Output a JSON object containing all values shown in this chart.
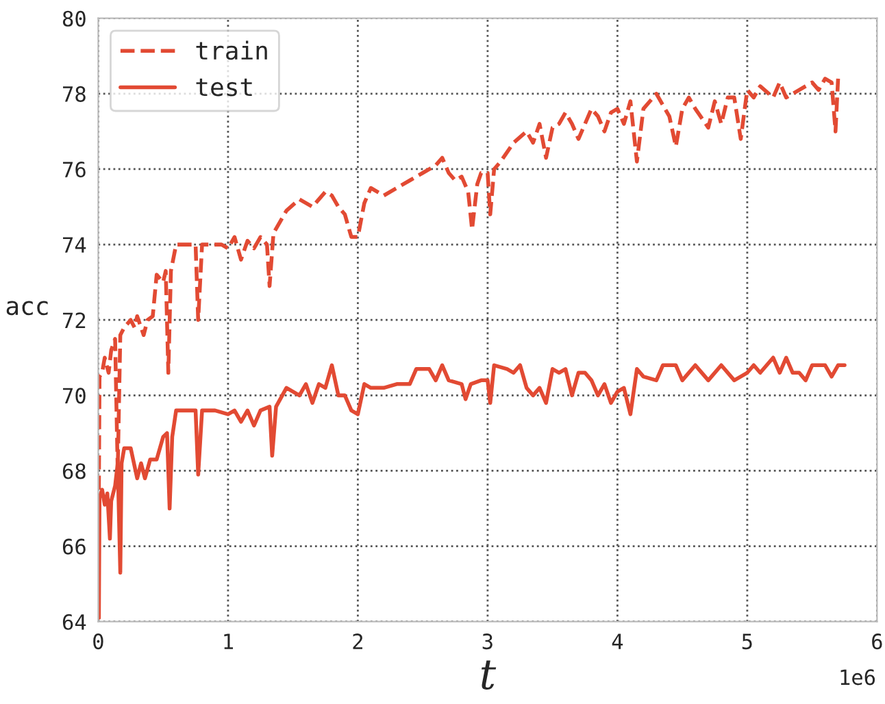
{
  "chart_data": {
    "type": "line",
    "xlabel": "t",
    "ylabel": "acc",
    "annotations": [
      "1e6"
    ],
    "xlim": [
      0,
      6
    ],
    "ylim": [
      64,
      80
    ],
    "xticks": [
      0,
      1,
      2,
      3,
      4,
      5,
      6
    ],
    "yticks": [
      64,
      66,
      68,
      70,
      72,
      74,
      76,
      78,
      80
    ],
    "grid": true,
    "legend": "top left",
    "series": [
      {
        "name": "train",
        "color": "#e24a33",
        "line_style": "dashed",
        "x": [
          0.005,
          0.01,
          0.03,
          0.05,
          0.08,
          0.1,
          0.13,
          0.15,
          0.17,
          0.2,
          0.25,
          0.28,
          0.3,
          0.35,
          0.38,
          0.42,
          0.45,
          0.5,
          0.52,
          0.54,
          0.56,
          0.6,
          0.7,
          0.75,
          0.77,
          0.8,
          0.9,
          0.95,
          1.0,
          1.05,
          1.1,
          1.15,
          1.2,
          1.25,
          1.3,
          1.32,
          1.35,
          1.45,
          1.55,
          1.65,
          1.75,
          1.8,
          1.85,
          1.9,
          1.95,
          2.0,
          2.05,
          2.1,
          2.2,
          2.3,
          2.4,
          2.5,
          2.6,
          2.65,
          2.7,
          2.75,
          2.8,
          2.85,
          2.88,
          2.92,
          2.95,
          3.0,
          3.02,
          3.05,
          3.1,
          3.2,
          3.3,
          3.35,
          3.4,
          3.45,
          3.5,
          3.55,
          3.6,
          3.65,
          3.7,
          3.8,
          3.85,
          3.9,
          3.95,
          4.0,
          4.05,
          4.1,
          4.15,
          4.2,
          4.3,
          4.35,
          4.4,
          4.45,
          4.5,
          4.55,
          4.6,
          4.7,
          4.75,
          4.8,
          4.85,
          4.9,
          4.95,
          5.0,
          5.05,
          5.1,
          5.2,
          5.25,
          5.3,
          5.4,
          5.5,
          5.55,
          5.6,
          5.65,
          5.68,
          5.7
        ],
        "values": [
          67.5,
          70.5,
          70.6,
          71.0,
          70.6,
          71.2,
          71.5,
          68.0,
          71.6,
          71.8,
          72.0,
          71.8,
          72.1,
          71.6,
          72.0,
          72.1,
          73.2,
          73.0,
          73.3,
          70.6,
          73.3,
          74.0,
          74.0,
          74.0,
          72.0,
          74.0,
          74.0,
          74.0,
          73.9,
          74.2,
          73.6,
          74.1,
          73.9,
          74.2,
          74.0,
          72.9,
          74.3,
          74.9,
          75.2,
          75.0,
          75.4,
          75.3,
          75.0,
          74.8,
          74.2,
          74.2,
          75.1,
          75.5,
          75.3,
          75.5,
          75.7,
          75.9,
          76.1,
          76.3,
          75.9,
          75.7,
          75.8,
          75.4,
          74.4,
          75.6,
          75.9,
          75.9,
          74.8,
          76.0,
          76.2,
          76.7,
          77.0,
          76.7,
          77.2,
          76.3,
          77.1,
          77.2,
          77.5,
          77.2,
          76.8,
          77.6,
          77.4,
          77.0,
          77.5,
          77.6,
          77.2,
          77.8,
          76.2,
          77.6,
          78.0,
          77.7,
          77.4,
          76.6,
          77.6,
          77.9,
          77.6,
          77.1,
          77.8,
          77.2,
          77.9,
          77.9,
          76.8,
          78.1,
          77.9,
          78.2,
          77.9,
          78.3,
          77.9,
          78.1,
          78.3,
          78.1,
          78.4,
          78.3,
          77.0,
          78.4
        ]
      },
      {
        "name": "test",
        "color": "#e24a33",
        "line_style": "solid",
        "x": [
          0.005,
          0.01,
          0.03,
          0.05,
          0.07,
          0.09,
          0.1,
          0.13,
          0.15,
          0.17,
          0.18,
          0.2,
          0.25,
          0.3,
          0.33,
          0.36,
          0.4,
          0.45,
          0.5,
          0.53,
          0.55,
          0.57,
          0.6,
          0.7,
          0.75,
          0.77,
          0.8,
          0.9,
          1.0,
          1.05,
          1.1,
          1.15,
          1.2,
          1.25,
          1.32,
          1.34,
          1.37,
          1.45,
          1.5,
          1.55,
          1.6,
          1.65,
          1.7,
          1.75,
          1.8,
          1.85,
          1.9,
          1.95,
          2.0,
          2.05,
          2.1,
          2.2,
          2.3,
          2.4,
          2.45,
          2.55,
          2.6,
          2.65,
          2.7,
          2.8,
          2.83,
          2.87,
          2.95,
          3.0,
          3.02,
          3.05,
          3.15,
          3.2,
          3.25,
          3.3,
          3.35,
          3.4,
          3.45,
          3.5,
          3.55,
          3.6,
          3.65,
          3.7,
          3.75,
          3.8,
          3.85,
          3.9,
          3.95,
          4.0,
          4.05,
          4.1,
          4.15,
          4.2,
          4.3,
          4.35,
          4.45,
          4.5,
          4.6,
          4.7,
          4.8,
          4.9,
          5.0,
          5.05,
          5.1,
          5.15,
          5.2,
          5.25,
          5.3,
          5.35,
          5.4,
          5.45,
          5.5,
          5.6,
          5.65,
          5.7,
          5.75
        ],
        "values": [
          64.1,
          67.3,
          67.5,
          67.1,
          67.4,
          66.2,
          67.2,
          67.6,
          68.2,
          65.3,
          68.2,
          68.6,
          68.6,
          67.8,
          68.2,
          67.8,
          68.3,
          68.3,
          68.9,
          69.0,
          67.0,
          68.9,
          69.6,
          69.6,
          69.6,
          67.9,
          69.6,
          69.6,
          69.5,
          69.6,
          69.3,
          69.6,
          69.2,
          69.6,
          69.7,
          68.4,
          69.7,
          70.2,
          70.1,
          70.0,
          70.3,
          69.8,
          70.3,
          70.2,
          70.8,
          70.0,
          70.0,
          69.6,
          69.5,
          70.3,
          70.2,
          70.2,
          70.3,
          70.3,
          70.7,
          70.7,
          70.4,
          70.8,
          70.4,
          70.3,
          69.9,
          70.3,
          70.4,
          70.4,
          69.8,
          70.8,
          70.7,
          70.6,
          70.8,
          70.2,
          70.0,
          70.2,
          69.8,
          70.7,
          70.6,
          70.7,
          70.0,
          70.6,
          70.6,
          70.4,
          70.0,
          70.3,
          69.8,
          70.1,
          70.2,
          69.5,
          70.7,
          70.5,
          70.4,
          70.8,
          70.8,
          70.4,
          70.8,
          70.4,
          70.8,
          70.4,
          70.6,
          70.8,
          70.6,
          70.8,
          71.0,
          70.6,
          71.0,
          70.6,
          70.6,
          70.4,
          70.8,
          70.8,
          70.5,
          70.8,
          70.8
        ]
      }
    ]
  }
}
